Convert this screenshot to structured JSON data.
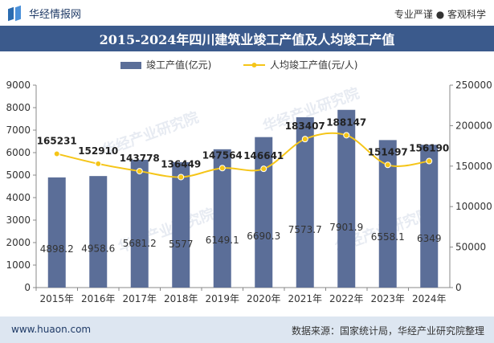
{
  "header": {
    "site_name": "华经情报网",
    "slogan": "专业严谨 ● 客观科学",
    "title": "2015-2024年四川建筑业竣工产值及人均竣工产值"
  },
  "footer": {
    "url": "www.huaon.com",
    "source": "数据来源：国家统计局，华经产业研究院整理"
  },
  "watermark": "华经产业研究院",
  "colors": {
    "bar": "#5b6e98",
    "line": "#f5c518",
    "title_bg": "#3b5a8c",
    "footer_bg": "#dde6f1"
  },
  "chart_data": {
    "type": "bar",
    "categories": [
      "2015年",
      "2016年",
      "2017年",
      "2018年",
      "2019年",
      "2020年",
      "2021年",
      "2022年",
      "2023年",
      "2024年"
    ],
    "series": [
      {
        "name": "竣工产值(亿元)",
        "type": "bar",
        "axis": "left",
        "values": [
          4898.2,
          4958.6,
          5681.2,
          5577,
          6149.1,
          6690.3,
          7573.7,
          7901.9,
          6558.1,
          6349
        ],
        "labels": [
          "4898.2",
          "4958.6",
          "5681.2",
          "5577",
          "6149.1",
          "6690.3",
          "7573.7",
          "7901.9",
          "6558.1",
          "6349"
        ]
      },
      {
        "name": "人均竣工产值(元/人)",
        "type": "line",
        "axis": "right",
        "values": [
          165231,
          152910,
          143778,
          136449,
          147564,
          146641,
          183407,
          188147,
          151497,
          156190
        ],
        "labels": [
          "165231",
          "152910",
          "143778",
          "136449",
          "147564",
          "146641",
          "183407",
          "188147",
          "151497",
          "156190"
        ]
      }
    ],
    "y_left": {
      "min": 0,
      "max": 9000,
      "ticks": [
        "0",
        "1000",
        "2000",
        "3000",
        "4000",
        "5000",
        "6000",
        "7000",
        "8000",
        "9000"
      ]
    },
    "y_right": {
      "min": 0,
      "max": 250000,
      "ticks": [
        "0",
        "50000",
        "100000",
        "150000",
        "200000",
        "250000"
      ]
    },
    "grid": false,
    "legend_position": "top-center"
  }
}
